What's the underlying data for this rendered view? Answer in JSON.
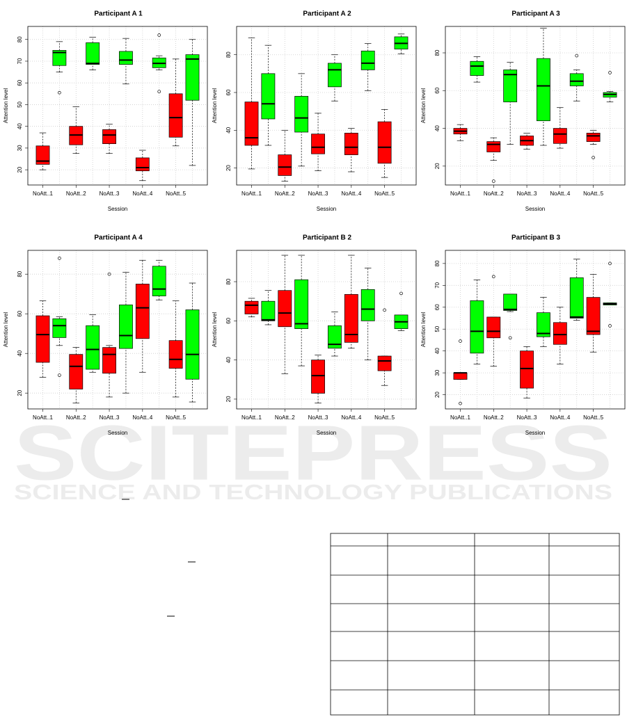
{
  "chart_data": [
    {
      "type": "box",
      "title": "Participant A 1",
      "xlabel": "Session",
      "ylabel": "Attention level",
      "categories": [
        "NoAtt..1",
        null,
        "NoAtt..2",
        null,
        "NoAtt..3",
        null,
        "NoAtt..4",
        null,
        "NoAtt..5",
        null
      ],
      "ylim": [
        13,
        86
      ],
      "yticks": [
        20,
        30,
        40,
        50,
        60,
        70,
        80
      ],
      "grid": true,
      "boxes": [
        {
          "whislo": 20,
          "q1": 22.5,
          "med": 24,
          "q3": 31,
          "whishi": 37,
          "color": "#ff0000"
        },
        {
          "whislo": 65,
          "q1": 68,
          "med": 74,
          "q3": 75,
          "whishi": 79,
          "fliers": [
            55.5
          ],
          "color": "#00ff00"
        },
        {
          "whislo": 27.5,
          "q1": 31.5,
          "med": 36,
          "q3": 40,
          "whishi": 49,
          "color": "#ff0000"
        },
        {
          "whislo": 66,
          "q1": 68.5,
          "med": 69,
          "q3": 78.5,
          "whishi": 81,
          "color": "#00ff00"
        },
        {
          "whislo": 27.5,
          "q1": 32,
          "med": 36,
          "q3": 38.5,
          "whishi": 41,
          "color": "#ff0000"
        },
        {
          "whislo": 59.5,
          "q1": 68.5,
          "med": 70.5,
          "q3": 74.5,
          "whishi": 80.5,
          "color": "#00ff00"
        },
        {
          "whislo": 15,
          "q1": 19.5,
          "med": 21,
          "q3": 25.5,
          "whishi": 29,
          "color": "#ff0000"
        },
        {
          "whislo": 66,
          "q1": 67,
          "med": 69,
          "q3": 71.5,
          "whishi": 72.5,
          "fliers": [
            56,
            82
          ],
          "color": "#00ff00"
        },
        {
          "whislo": 31,
          "q1": 35,
          "med": 44,
          "q3": 55,
          "whishi": 71,
          "color": "#ff0000"
        },
        {
          "whislo": 22,
          "q1": 52,
          "med": 71,
          "q3": 73,
          "whishi": 80,
          "color": "#00ff00"
        }
      ]
    },
    {
      "type": "box",
      "title": "Participant A 2",
      "xlabel": "Session",
      "ylabel": "Attention level",
      "categories": [
        "NoAtt..1",
        null,
        "NoAtt..2",
        null,
        "NoAtt..3",
        null,
        "NoAtt..4",
        null,
        "NoAtt..5",
        null
      ],
      "ylim": [
        11,
        95
      ],
      "yticks": [
        20,
        40,
        60,
        80
      ],
      "grid": true,
      "boxes": [
        {
          "whislo": 19.5,
          "q1": 32,
          "med": 36,
          "q3": 55,
          "whishi": 89,
          "color": "#ff0000"
        },
        {
          "whislo": 32,
          "q1": 46,
          "med": 54,
          "q3": 70,
          "whishi": 85,
          "color": "#00ff00"
        },
        {
          "whislo": 13,
          "q1": 16,
          "med": 20.5,
          "q3": 27,
          "whishi": 40,
          "color": "#ff0000"
        },
        {
          "whislo": 21,
          "q1": 39,
          "med": 46.5,
          "q3": 58,
          "whishi": 70,
          "color": "#00ff00"
        },
        {
          "whislo": 18.5,
          "q1": 27.5,
          "med": 31,
          "q3": 38,
          "whishi": 49,
          "color": "#ff0000"
        },
        {
          "whislo": 55.5,
          "q1": 63,
          "med": 72,
          "q3": 75.5,
          "whishi": 80,
          "color": "#00ff00"
        },
        {
          "whislo": 18,
          "q1": 27,
          "med": 31,
          "q3": 38.5,
          "whishi": 41,
          "color": "#ff0000"
        },
        {
          "whislo": 61,
          "q1": 72,
          "med": 75.5,
          "q3": 82,
          "whishi": 86,
          "color": "#00ff00"
        },
        {
          "whislo": 15,
          "q1": 22.5,
          "med": 31,
          "q3": 44.5,
          "whishi": 51,
          "color": "#ff0000"
        },
        {
          "whislo": 80.5,
          "q1": 83,
          "med": 86,
          "q3": 89.5,
          "whishi": 91,
          "color": "#00ff00"
        }
      ]
    },
    {
      "type": "box",
      "title": "Participant A 3",
      "xlabel": "Session",
      "ylabel": "Attention level",
      "categories": [
        "NoAtt..1",
        null,
        "NoAtt..2",
        null,
        "NoAtt..3",
        null,
        "NoAtt..4",
        null,
        "NoAtt..5",
        null
      ],
      "ylim": [
        10,
        94
      ],
      "yticks": [
        20,
        40,
        60,
        80
      ],
      "grid": true,
      "boxes": [
        {
          "whislo": 33.5,
          "q1": 37,
          "med": 38.5,
          "q3": 40,
          "whishi": 42,
          "color": "#ff0000"
        },
        {
          "whislo": 64.5,
          "q1": 68,
          "med": 73,
          "q3": 75.5,
          "whishi": 78,
          "color": "#00ff00"
        },
        {
          "whislo": 23,
          "q1": 27.5,
          "med": 31.5,
          "q3": 33,
          "whishi": 35,
          "fliers": [
            12
          ],
          "color": "#ff0000"
        },
        {
          "whislo": 31.5,
          "q1": 54,
          "med": 68.5,
          "q3": 71,
          "whishi": 75,
          "color": "#00ff00"
        },
        {
          "whislo": 29,
          "q1": 31,
          "med": 33.5,
          "q3": 36,
          "whishi": 37.5,
          "color": "#ff0000"
        },
        {
          "whislo": 31,
          "q1": 44,
          "med": 62.5,
          "q3": 77,
          "whishi": 93,
          "color": "#00ff00"
        },
        {
          "whislo": 29.5,
          "q1": 32,
          "med": 37,
          "q3": 40,
          "whishi": 51,
          "color": "#ff0000"
        },
        {
          "whislo": 54.5,
          "q1": 62.5,
          "med": 65,
          "q3": 69,
          "whishi": 71,
          "fliers": [
            78.5
          ],
          "color": "#00ff00"
        },
        {
          "whislo": 31.5,
          "q1": 33,
          "med": 36,
          "q3": 37.5,
          "whishi": 39,
          "fliers": [
            24.5
          ],
          "color": "#ff0000"
        },
        {
          "whislo": 54,
          "q1": 56.5,
          "med": 58,
          "q3": 59,
          "whishi": 59.5,
          "fliers": [
            69.5
          ],
          "color": "#00ff00"
        }
      ]
    },
    {
      "type": "box",
      "title": "Participant A 4",
      "xlabel": "Session",
      "ylabel": "Attention level",
      "categories": [
        "NoAtt..1",
        null,
        "NoAtt..2",
        null,
        "NoAtt..3",
        null,
        "NoAtt..4",
        null,
        "NoAtt..5",
        null
      ],
      "ylim": [
        12,
        92
      ],
      "yticks": [
        20,
        40,
        60,
        80
      ],
      "grid": true,
      "boxes": [
        {
          "whislo": 28,
          "q1": 35.5,
          "med": 49.5,
          "q3": 59,
          "whishi": 66.5,
          "color": "#ff0000"
        },
        {
          "whislo": 44,
          "q1": 48,
          "med": 54,
          "q3": 57.5,
          "whishi": 58.5,
          "fliers": [
            29,
            88
          ],
          "color": "#00ff00"
        },
        {
          "whislo": 15,
          "q1": 22,
          "med": 33.5,
          "q3": 39.5,
          "whishi": 43,
          "color": "#ff0000"
        },
        {
          "whislo": 30.5,
          "q1": 32,
          "med": 42,
          "q3": 54,
          "whishi": 59.5,
          "color": "#00ff00"
        },
        {
          "whislo": 18,
          "q1": 30,
          "med": 39.5,
          "q3": 43,
          "whishi": 44,
          "fliers": [
            80
          ],
          "color": "#ff0000"
        },
        {
          "whislo": 20,
          "q1": 42.5,
          "med": 49,
          "q3": 64.5,
          "whishi": 81,
          "color": "#00ff00"
        },
        {
          "whislo": 30.5,
          "q1": 47.5,
          "med": 63,
          "q3": 75,
          "whishi": 87,
          "color": "#ff0000"
        },
        {
          "whislo": 67,
          "q1": 69,
          "med": 72.5,
          "q3": 84,
          "whishi": 87,
          "color": "#00ff00"
        },
        {
          "whislo": 18,
          "q1": 32.5,
          "med": 37,
          "q3": 46.5,
          "whishi": 66.5,
          "color": "#ff0000"
        },
        {
          "whislo": 15.5,
          "q1": 27,
          "med": 39.5,
          "q3": 62,
          "whishi": 75.5,
          "color": "#00ff00"
        }
      ]
    },
    {
      "type": "box",
      "title": "Participant B 2",
      "xlabel": "Session",
      "ylabel": "Attention level",
      "categories": [
        "NoAtt..1",
        null,
        "NoAtt..2",
        null,
        "NoAtt..3",
        null,
        "NoAtt..4",
        null,
        "NoAtt..5",
        null
      ],
      "ylim": [
        15,
        96
      ],
      "yticks": [
        20,
        40,
        60,
        80
      ],
      "grid": true,
      "boxes": [
        {
          "whislo": 62,
          "q1": 63.5,
          "med": 68,
          "q3": 70,
          "whishi": 71.5,
          "color": "#ff0000"
        },
        {
          "whislo": 58,
          "q1": 60,
          "med": 60.5,
          "q3": 70,
          "whishi": 75.5,
          "color": "#00ff00"
        },
        {
          "whislo": 33,
          "q1": 57,
          "med": 64,
          "q3": 75.5,
          "whishi": 93.5,
          "color": "#ff0000"
        },
        {
          "whislo": 37,
          "q1": 56,
          "med": 58.5,
          "q3": 81,
          "whishi": 93.5,
          "color": "#00ff00"
        },
        {
          "whislo": 18,
          "q1": 23,
          "med": 32,
          "q3": 40,
          "whishi": 42.5,
          "color": "#ff0000"
        },
        {
          "whislo": 42,
          "q1": 46,
          "med": 48,
          "q3": 57.5,
          "whishi": 64.5,
          "color": "#00ff00"
        },
        {
          "whislo": 46,
          "q1": 49,
          "med": 53,
          "q3": 73.5,
          "whishi": 93.5,
          "color": "#ff0000"
        },
        {
          "whislo": 40,
          "q1": 60,
          "med": 66,
          "q3": 76,
          "whishi": 87,
          "color": "#00ff00"
        },
        {
          "whislo": 27,
          "q1": 34.5,
          "med": 39.5,
          "q3": 42,
          "whishi": 42,
          "fliers": [
            65.5
          ],
          "color": "#ff0000"
        },
        {
          "whislo": 55,
          "q1": 56,
          "med": 59.5,
          "q3": 63,
          "whishi": 63,
          "fliers": [
            74
          ],
          "color": "#00ff00"
        }
      ]
    },
    {
      "type": "box",
      "title": "Participant B 3",
      "xlabel": "Session",
      "ylabel": "Attention level",
      "categories": [
        "NoAtt..1",
        null,
        "NoAtt..2",
        null,
        "NoAtt..3",
        null,
        "NoAtt..4",
        null,
        "NoAtt..5",
        null
      ],
      "ylim": [
        13.5,
        86
      ],
      "yticks": [
        20,
        30,
        40,
        50,
        60,
        70,
        80
      ],
      "grid": true,
      "boxes": [
        {
          "whislo": 27,
          "q1": 27,
          "med": 30,
          "q3": 30,
          "whishi": 30,
          "fliers": [
            16,
            44.5
          ],
          "color": "#ff0000"
        },
        {
          "whislo": 34,
          "q1": 39,
          "med": 49,
          "q3": 63,
          "whishi": 72.5,
          "color": "#00ff00"
        },
        {
          "whislo": 33,
          "q1": 46,
          "med": 49,
          "q3": 55.5,
          "whishi": 55.5,
          "fliers": [
            74
          ],
          "color": "#ff0000"
        },
        {
          "whislo": 58,
          "q1": 58.5,
          "med": 59,
          "q3": 66,
          "whishi": 66,
          "fliers": [
            46
          ],
          "color": "#00ff00"
        },
        {
          "whislo": 18.5,
          "q1": 23,
          "med": 32,
          "q3": 40,
          "whishi": 42,
          "color": "#ff0000"
        },
        {
          "whislo": 42,
          "q1": 46.5,
          "med": 48,
          "q3": 57.5,
          "whishi": 64.5,
          "color": "#00ff00"
        },
        {
          "whislo": 34,
          "q1": 43,
          "med": 47.5,
          "q3": 53,
          "whishi": 60,
          "color": "#ff0000"
        },
        {
          "whislo": 54,
          "q1": 55,
          "med": 55.5,
          "q3": 73.5,
          "whishi": 82,
          "color": "#00ff00"
        },
        {
          "whislo": 39.5,
          "q1": 47.5,
          "med": 49,
          "q3": 64.5,
          "whishi": 75,
          "color": "#ff0000"
        },
        {
          "whislo": 61,
          "q1": 61,
          "med": 61.5,
          "q3": 62,
          "whishi": 62,
          "fliers": [
            51.5,
            80
          ],
          "color": "#00ff00"
        }
      ]
    }
  ],
  "watermark": {
    "line1": "SCITEPRESS",
    "line2": "SCIENCE AND TECHNOLOGY PUBLICATIONS"
  }
}
